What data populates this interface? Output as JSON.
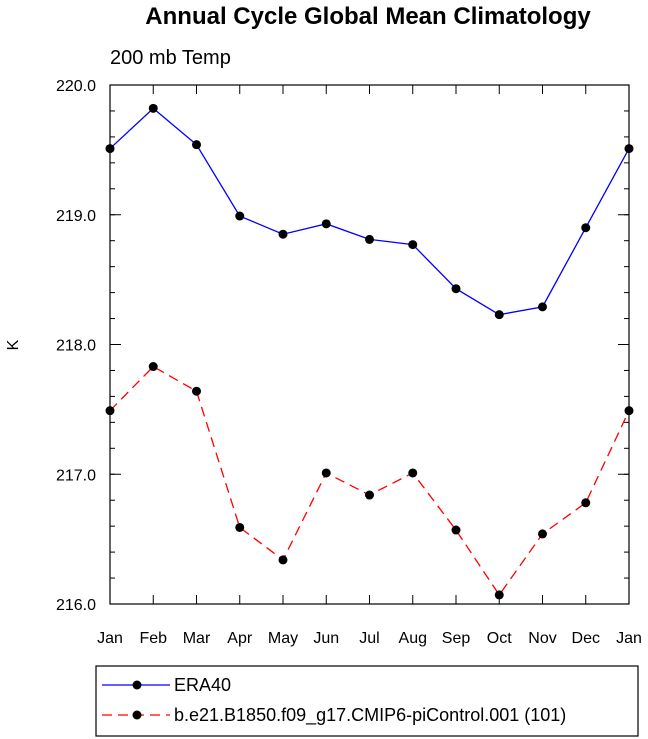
{
  "chart_data": {
    "type": "line",
    "title": "Annual Cycle Global Mean Climatology",
    "subtitle": "200 mb Temp",
    "xlabel": "",
    "ylabel": "K",
    "categories": [
      "Jan",
      "Feb",
      "Mar",
      "Apr",
      "May",
      "Jun",
      "Jul",
      "Aug",
      "Sep",
      "Oct",
      "Nov",
      "Dec",
      "Jan"
    ],
    "ylim": [
      216.0,
      220.0
    ],
    "yticks": [
      216.0,
      217.0,
      218.0,
      219.0,
      220.0
    ],
    "ytick_labels": [
      "216.0",
      "217.0",
      "218.0",
      "219.0",
      "220.0"
    ],
    "minor_ytick_step": 0.2,
    "grid": false,
    "legend_position": "bottom",
    "series": [
      {
        "name": "ERA40",
        "color": "#0000ff",
        "dash": "solid",
        "values": [
          219.51,
          219.82,
          219.54,
          218.99,
          218.85,
          218.93,
          218.81,
          218.77,
          218.43,
          218.23,
          218.29,
          218.9,
          219.51
        ]
      },
      {
        "name": "b.e21.B1850.f09_g17.CMIP6-piControl.001 (101)",
        "color": "#ff0000",
        "dash": "dashed",
        "values": [
          217.49,
          217.83,
          217.64,
          216.59,
          216.34,
          217.01,
          216.84,
          217.01,
          216.57,
          216.07,
          216.54,
          216.78,
          217.49
        ]
      }
    ]
  }
}
